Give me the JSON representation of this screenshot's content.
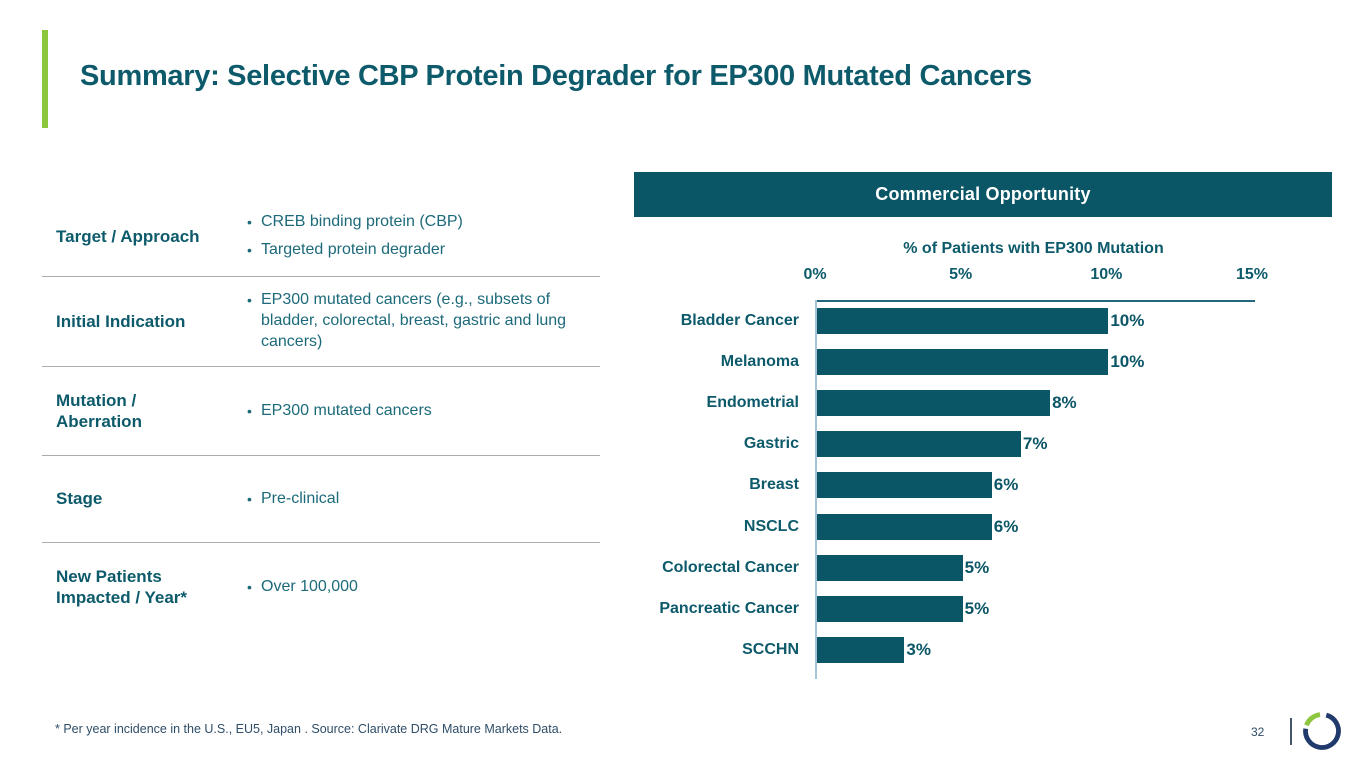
{
  "slide": {
    "title": "Summary: Selective CBP Protein Degrader for EP300 Mutated Cancers",
    "footnote": "* Per year incidence in the U.S., EU5, Japan . Source: Clarivate DRG Mature Markets Data.",
    "page_number": "32"
  },
  "table": {
    "rows": [
      {
        "label": "Target / Approach",
        "bullets": [
          "CREB binding protein (CBP)",
          "Targeted protein degrader"
        ]
      },
      {
        "label": "Initial Indication",
        "bullets": [
          "EP300 mutated cancers (e.g., subsets of bladder, colorectal, breast, gastric and lung cancers)"
        ]
      },
      {
        "label": "Mutation / Aberration",
        "bullets": [
          "EP300 mutated cancers"
        ]
      },
      {
        "label": "Stage",
        "bullets": [
          "Pre-clinical"
        ]
      },
      {
        "label": "New Patients Impacted / Year*",
        "bullets": [
          "Over 100,000"
        ]
      }
    ]
  },
  "commercial": {
    "header": "Commercial Opportunity"
  },
  "chart_data": {
    "type": "bar",
    "orientation": "horizontal",
    "title": "% of Patients with EP300 Mutation",
    "categories": [
      "Bladder Cancer",
      "Melanoma",
      "Endometrial",
      "Gastric",
      "Breast",
      "NSCLC",
      "Colorectal Cancer",
      "Pancreatic Cancer",
      "SCCHN"
    ],
    "values": [
      10,
      10,
      8,
      7,
      6,
      6,
      5,
      5,
      3
    ],
    "value_labels": [
      "10%",
      "10%",
      "8%",
      "7%",
      "6%",
      "6%",
      "5%",
      "5%",
      "3%"
    ],
    "x_ticks": [
      "0%",
      "5%",
      "10%",
      "15%"
    ],
    "xlim": [
      0,
      15
    ],
    "grid": false,
    "legend": "none",
    "bar_color": "#0b5666"
  },
  "colors": {
    "teal_dark": "#0b5666",
    "teal_text": "#0d5a6b",
    "teal_body": "#1c6a7a",
    "green_accent": "#8dc63f",
    "navy_text": "#2e4d68",
    "logo_navy": "#203a6b",
    "axis_light": "#a5c5d6",
    "divider_gray": "#ababab"
  },
  "logo": {
    "name": "open-ring-logo"
  }
}
